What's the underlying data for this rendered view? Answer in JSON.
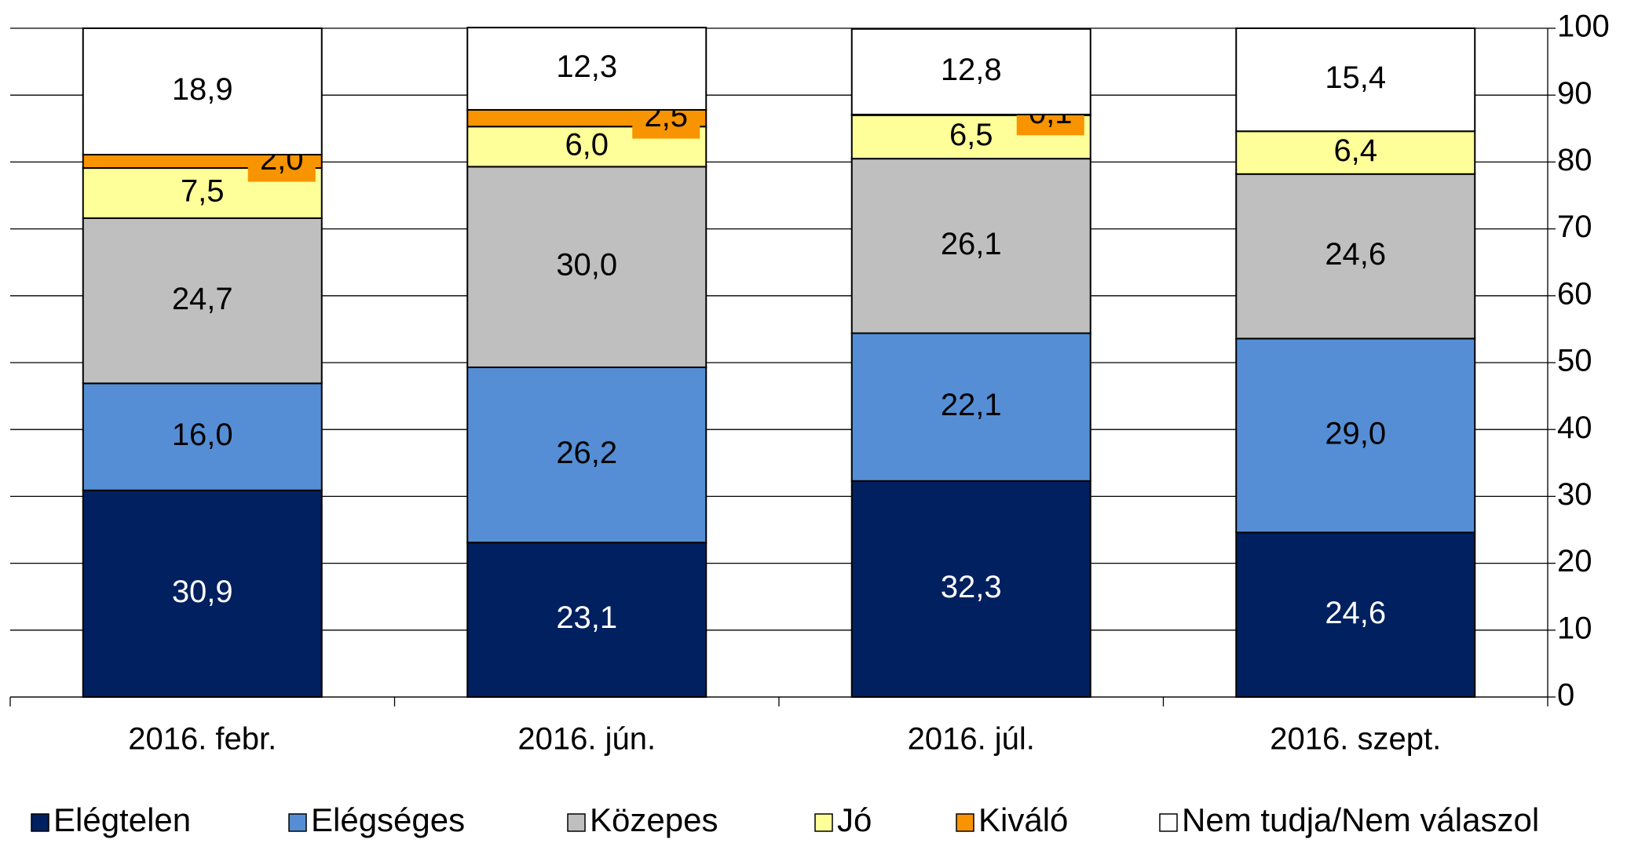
{
  "chart_data": {
    "type": "stacked_bar",
    "categories": [
      "2016. febr.",
      "2016. jún.",
      "2016. júl.",
      "2016. szept."
    ],
    "series": [
      {
        "name": "Elégtelen",
        "color": "#002060",
        "values": [
          30.9,
          23.1,
          32.3,
          24.6
        ],
        "value_labels": [
          "30,9",
          "23,1",
          "32,3",
          "24,6"
        ]
      },
      {
        "name": "Elégséges",
        "color": "#558ed5",
        "values": [
          16.0,
          26.2,
          22.1,
          29.0
        ],
        "value_labels": [
          "16,0",
          "26,2",
          "22,1",
          "29,0"
        ]
      },
      {
        "name": "Közepes",
        "color": "#bfbfbf",
        "values": [
          24.7,
          30.0,
          26.1,
          24.6
        ],
        "value_labels": [
          "24,7",
          "30,0",
          "26,1",
          "24,6"
        ]
      },
      {
        "name": "Jó",
        "color": "#ffff99",
        "values": [
          7.5,
          6.0,
          6.5,
          6.4
        ],
        "value_labels": [
          "7,5",
          "6,0",
          "6,5",
          "6,4"
        ]
      },
      {
        "name": "Kiváló",
        "color": "#f79400",
        "values": [
          2.0,
          2.5,
          0.1,
          0
        ],
        "value_labels": [
          "2,0",
          "2,5",
          "0,1",
          null
        ]
      },
      {
        "name": "Nem tudja/Nem válaszol",
        "color": "#ffffff",
        "values": [
          18.9,
          12.3,
          12.8,
          15.4
        ],
        "value_labels": [
          "18,9",
          "12,3",
          "12,8",
          "15,4"
        ]
      }
    ],
    "ylim": [
      0,
      100
    ],
    "yticks": [
      0,
      10,
      20,
      30,
      40,
      50,
      60,
      70,
      80,
      90,
      100
    ],
    "y_axis_side": "right",
    "grid": true,
    "legend": "bottom"
  }
}
